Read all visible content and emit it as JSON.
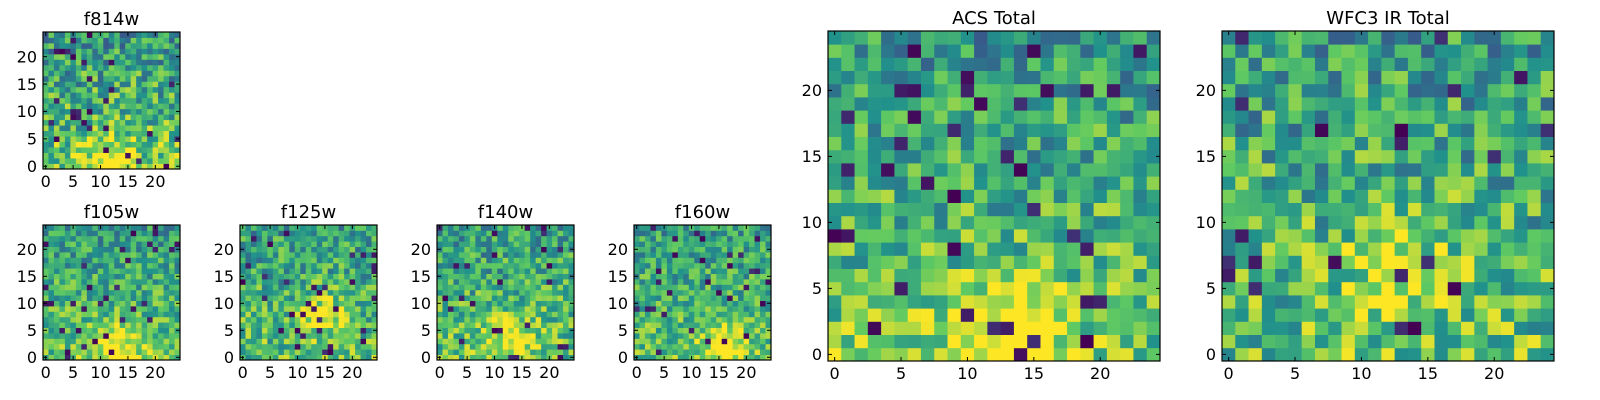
{
  "colormap": [
    "#440154",
    "#3b528b",
    "#21918c",
    "#5ec962",
    "#fde725"
  ],
  "frame_color": "#000000",
  "chart_data": [
    {
      "type": "heatmap",
      "title": "f814w",
      "size": 25,
      "x_ticks": [
        "0",
        "5",
        "10",
        "15",
        "20"
      ],
      "y_ticks": [
        "0",
        "5",
        "10",
        "15",
        "20"
      ],
      "xlim": [
        -0.5,
        24.5
      ],
      "ylim": [
        -0.5,
        24.5
      ],
      "seed": 11,
      "noise": 0.55,
      "gradient": 0.45,
      "blob": [
        12,
        1,
        0.35
      ],
      "dark_fraction": 0.04
    },
    {
      "type": "heatmap",
      "title": "f105w",
      "size": 25,
      "x_ticks": [
        "0",
        "5",
        "10",
        "15",
        "20"
      ],
      "y_ticks": [
        "0",
        "5",
        "10",
        "15",
        "20"
      ],
      "xlim": [
        -0.5,
        24.5
      ],
      "ylim": [
        -0.5,
        24.5
      ],
      "seed": 23,
      "noise": 0.45,
      "gradient": 0.4,
      "blob": [
        13,
        2,
        0.35
      ],
      "dark_fraction": 0.05
    },
    {
      "type": "heatmap",
      "title": "f125w",
      "size": 25,
      "x_ticks": [
        "0",
        "5",
        "10",
        "15",
        "20"
      ],
      "y_ticks": [
        "0",
        "5",
        "10",
        "15",
        "20"
      ],
      "xlim": [
        -0.5,
        24.5
      ],
      "ylim": [
        -0.5,
        24.5
      ],
      "seed": 37,
      "noise": 0.5,
      "gradient": 0.3,
      "blob": [
        15,
        8,
        0.3
      ],
      "dark_fraction": 0.05
    },
    {
      "type": "heatmap",
      "title": "f140w",
      "size": 25,
      "x_ticks": [
        "0",
        "5",
        "10",
        "15",
        "20"
      ],
      "y_ticks": [
        "0",
        "5",
        "10",
        "15",
        "20"
      ],
      "xlim": [
        -0.5,
        24.5
      ],
      "ylim": [
        -0.5,
        24.5
      ],
      "seed": 41,
      "noise": 0.5,
      "gradient": 0.35,
      "blob": [
        13,
        4,
        0.35
      ],
      "dark_fraction": 0.04
    },
    {
      "type": "heatmap",
      "title": "f160w",
      "size": 25,
      "x_ticks": [
        "0",
        "5",
        "10",
        "15",
        "20"
      ],
      "y_ticks": [
        "0",
        "5",
        "10",
        "15",
        "20"
      ],
      "xlim": [
        -0.5,
        24.5
      ],
      "ylim": [
        -0.5,
        24.5
      ],
      "seed": 53,
      "noise": 0.45,
      "gradient": 0.35,
      "blob": [
        16,
        2,
        0.35
      ],
      "dark_fraction": 0.04
    },
    {
      "type": "heatmap",
      "title": "ACS Total",
      "size": 25,
      "x_ticks": [
        "0",
        "5",
        "10",
        "15",
        "20"
      ],
      "y_ticks": [
        "0",
        "5",
        "10",
        "15",
        "20"
      ],
      "xlim": [
        -0.5,
        24.5
      ],
      "ylim": [
        -0.5,
        24.5
      ],
      "seed": 67,
      "noise": 0.5,
      "gradient": 0.45,
      "blob": [
        13,
        1,
        0.4
      ],
      "dark_fraction": 0.05
    },
    {
      "type": "heatmap",
      "title": "WFC3 IR Total",
      "size": 25,
      "x_ticks": [
        "0",
        "5",
        "10",
        "15",
        "20"
      ],
      "y_ticks": [
        "0",
        "5",
        "10",
        "15",
        "20"
      ],
      "xlim": [
        -0.5,
        24.5
      ],
      "ylim": [
        -0.5,
        24.5
      ],
      "seed": 79,
      "noise": 0.55,
      "gradient": 0.3,
      "blob": [
        13,
        6,
        0.25
      ],
      "dark_fraction": 0.05
    }
  ]
}
